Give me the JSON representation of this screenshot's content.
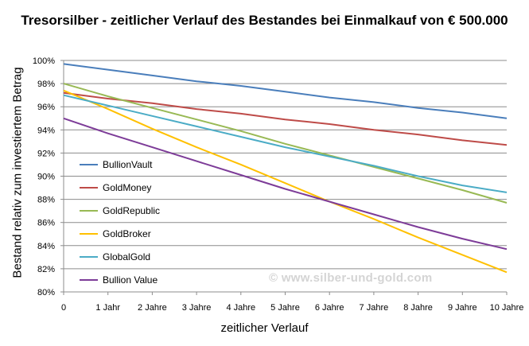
{
  "chart_data": {
    "type": "line",
    "title": "Tresorsilber - zeitlicher Verlauf des Bestandes bei Einmalkauf von € 500.000",
    "xlabel": "zeitlicher Verlauf",
    "ylabel": "Bestand relativ zum investiertem Betrag",
    "categories": [
      "0",
      "1 Jahr",
      "2 Jahre",
      "3 Jahre",
      "4 Jahre",
      "5 Jahre",
      "6 Jahre",
      "7 Jahre",
      "8 Jahre",
      "9 Jahre",
      "10 Jahre"
    ],
    "y_ticks": [
      "80%",
      "82%",
      "84%",
      "86%",
      "88%",
      "90%",
      "92%",
      "94%",
      "96%",
      "98%",
      "100%"
    ],
    "ylim": [
      80,
      100
    ],
    "grid": true,
    "legend_position": "left-inside",
    "series": [
      {
        "name": "BullionVault",
        "color": "#4a7ebb",
        "values": [
          99.7,
          99.2,
          98.7,
          98.2,
          97.8,
          97.3,
          96.8,
          96.4,
          95.9,
          95.5,
          95.0
        ]
      },
      {
        "name": "GoldMoney",
        "color": "#be4b48",
        "values": [
          97.2,
          96.7,
          96.3,
          95.8,
          95.4,
          94.9,
          94.5,
          94.0,
          93.6,
          93.1,
          92.7
        ]
      },
      {
        "name": "GoldRepublic",
        "color": "#98b954",
        "values": [
          98.0,
          96.9,
          95.9,
          94.9,
          93.9,
          92.8,
          91.8,
          90.8,
          89.8,
          88.8,
          87.7
        ]
      },
      {
        "name": "GoldBroker",
        "color": "#ffc000",
        "values": [
          97.4,
          95.8,
          94.1,
          92.5,
          91.0,
          89.4,
          87.8,
          86.3,
          84.7,
          83.2,
          81.7
        ]
      },
      {
        "name": "GlobalGold",
        "color": "#4bacc6",
        "values": [
          97.0,
          96.1,
          95.2,
          94.3,
          93.4,
          92.5,
          91.7,
          90.9,
          90.0,
          89.2,
          88.6
        ]
      },
      {
        "name": "Bullion Value",
        "color": "#7d3c98",
        "values": [
          95.0,
          93.7,
          92.5,
          91.3,
          90.1,
          88.9,
          87.8,
          86.7,
          85.6,
          84.6,
          83.7
        ]
      }
    ]
  },
  "watermark": "© www.silber-und-gold.com"
}
